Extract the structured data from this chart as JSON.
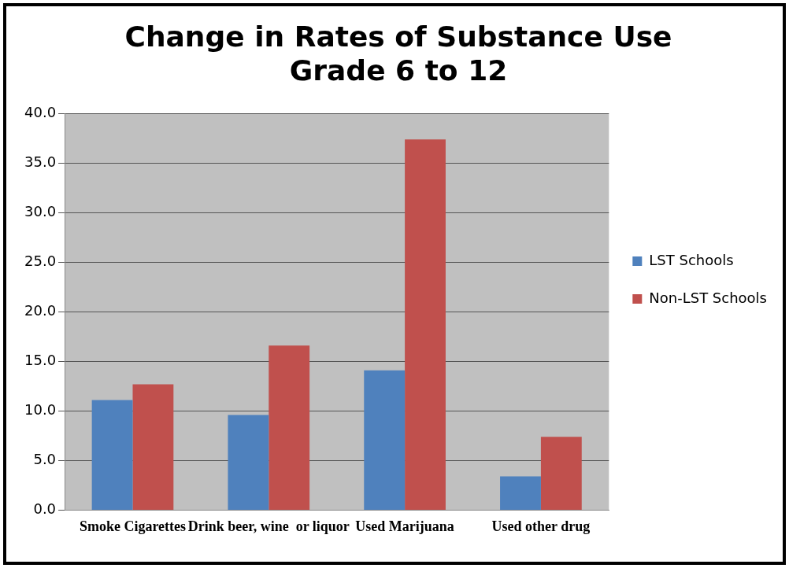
{
  "chart_data": {
    "type": "bar",
    "title": "Change in Rates of Substance Use\nGrade 6 to 12",
    "categories": [
      "Smoke Cigarettes",
      "Drink beer, wine  or liquor",
      "Used Marijuana",
      "Used other drug"
    ],
    "series": [
      {
        "name": "LST Schools",
        "color": "#4f81bd",
        "values": [
          11.1,
          9.6,
          14.1,
          3.4
        ]
      },
      {
        "name": "Non-LST Schools",
        "color": "#c0504d",
        "values": [
          12.7,
          16.6,
          37.4,
          7.4
        ]
      }
    ],
    "ylim": [
      0,
      40
    ],
    "yticks": [
      {
        "value": 0,
        "label": "0.0"
      },
      {
        "value": 5,
        "label": "5.0"
      },
      {
        "value": 10,
        "label": "10.0"
      },
      {
        "value": 15,
        "label": "15.0"
      },
      {
        "value": 20,
        "label": "20.0"
      },
      {
        "value": 25,
        "label": "25.0"
      },
      {
        "value": 30,
        "label": "30.0"
      },
      {
        "value": 35,
        "label": "35.0"
      },
      {
        "value": 40,
        "label": "40.0"
      }
    ],
    "grid": "y",
    "legend": "right"
  }
}
